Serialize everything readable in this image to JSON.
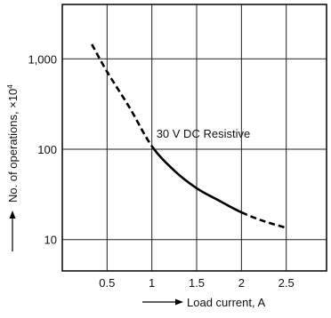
{
  "chart_data": {
    "type": "line",
    "xlabel": "Load current, A",
    "ylabel": "No. of operations, ×10",
    "ylabel_exponent": "4",
    "xlim": [
      0,
      2.95
    ],
    "ylim": [
      4.5,
      4000
    ],
    "y_scale": "log",
    "grid": true,
    "x_ticks": [
      0.5,
      1,
      1.5,
      2,
      2.5
    ],
    "x_tick_labels": [
      "0.5",
      "1",
      "1.5",
      "2",
      "2.5"
    ],
    "y_ticks": [
      10,
      100,
      1000
    ],
    "y_tick_labels": [
      "10",
      "100",
      "1,000"
    ],
    "series": [
      {
        "name": "30 V DC Resistive",
        "solid_range": [
          1,
          2
        ],
        "x": [
          0.33,
          0.5,
          0.75,
          1.0,
          1.25,
          1.5,
          1.75,
          2.0,
          2.25,
          2.5
        ],
        "y": [
          1450,
          720,
          290,
          108,
          58,
          37,
          27,
          20,
          16,
          13.5
        ]
      }
    ],
    "annotations": [
      {
        "text": "30 V DC Resistive",
        "x": 1.05,
        "y": 150
      }
    ]
  }
}
